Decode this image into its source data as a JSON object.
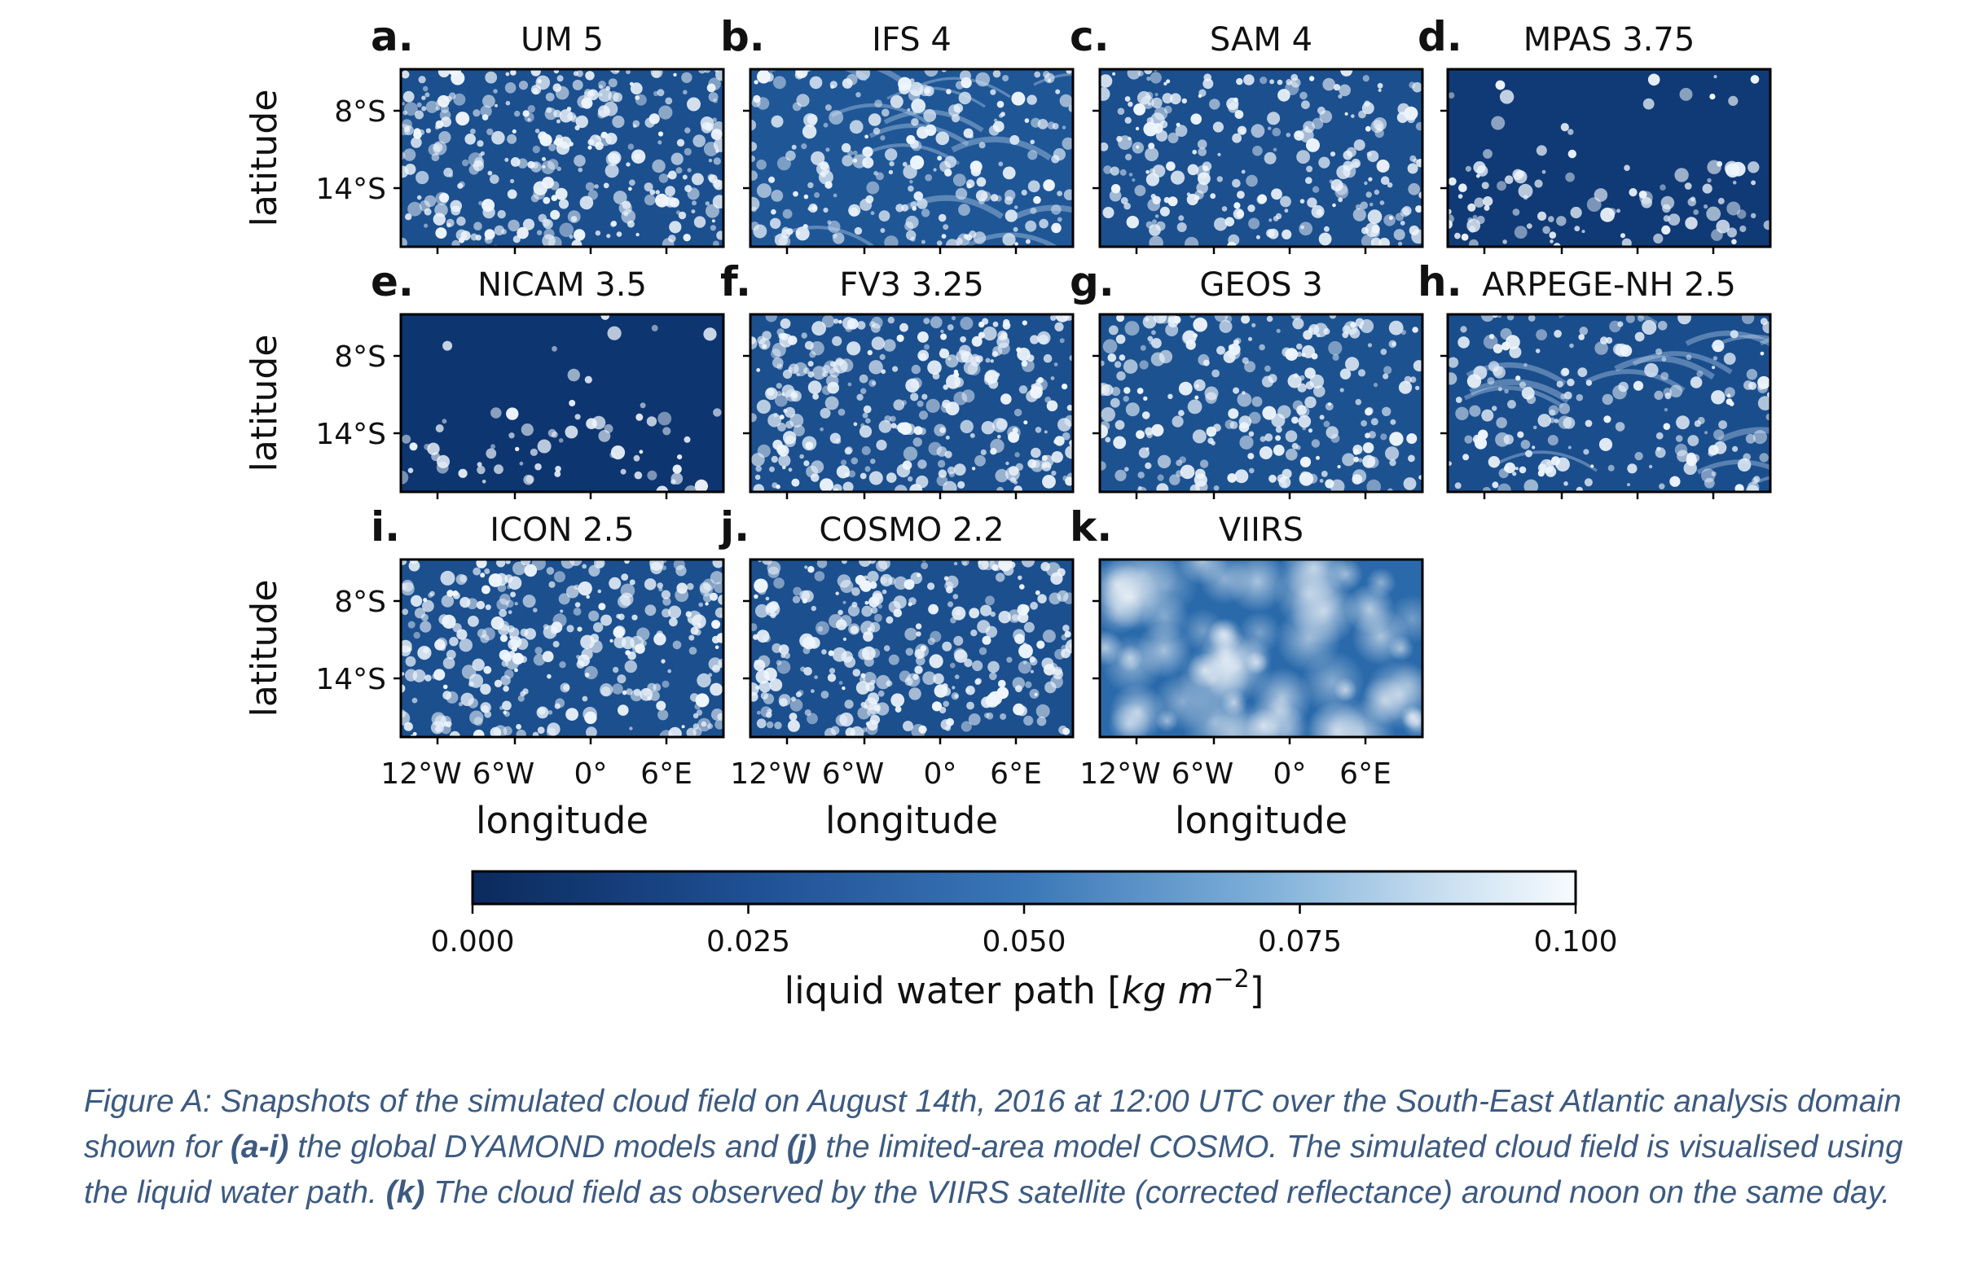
{
  "figure": {
    "panels": [
      {
        "letter": "a.",
        "title": "UM 5",
        "clouds": "dense"
      },
      {
        "letter": "b.",
        "title": "IFS 4",
        "clouds": "streaky"
      },
      {
        "letter": "c.",
        "title": "SAM 4",
        "clouds": "medium"
      },
      {
        "letter": "d.",
        "title": "MPAS 3.75",
        "clouds": "sparse"
      },
      {
        "letter": "e.",
        "title": "NICAM 3.5",
        "clouds": "very-sparse"
      },
      {
        "letter": "f.",
        "title": "FV3 3.25",
        "clouds": "cellular"
      },
      {
        "letter": "g.",
        "title": "GEOS 3",
        "clouds": "medium"
      },
      {
        "letter": "h.",
        "title": "ARPEGE-NH 2.5",
        "clouds": "swirl"
      },
      {
        "letter": "i.",
        "title": "ICON 2.5",
        "clouds": "cellular"
      },
      {
        "letter": "j.",
        "title": "COSMO 2.2",
        "clouds": "cellular"
      },
      {
        "letter": "k.",
        "title": "VIIRS",
        "clouds": "observed"
      }
    ],
    "y_axis_label": "latitude",
    "y_tick_labels": [
      "8°S",
      "14°S"
    ],
    "x_axis_label": "longitude",
    "x_tick_labels": [
      "12°W",
      "6°W",
      "0°",
      "6°E"
    ],
    "colorbar": {
      "ticks": [
        "0.000",
        "0.025",
        "0.050",
        "0.075",
        "0.100"
      ],
      "label_text": "liquid water path [",
      "label_units": "kg m",
      "label_exponent": "−2",
      "label_close": "]",
      "colors": [
        "#0b2a5c",
        "#1f4f94",
        "#3a77b8",
        "#7fb0d9",
        "#c9dff0",
        "#f7fbff"
      ]
    }
  },
  "chart_data": {
    "type": "heatmap",
    "variable": "liquid water path [kg m−2]",
    "colorbar_range": [
      0.0,
      0.1
    ],
    "colorbar_ticks": [
      0.0,
      0.025,
      0.05,
      0.075,
      0.1
    ],
    "panels": [
      "UM 5",
      "IFS 4",
      "SAM 4",
      "MPAS 3.75",
      "NICAM 3.5",
      "FV3 3.25",
      "GEOS 3",
      "ARPEGE-NH 2.5",
      "ICON 2.5",
      "COSMO 2.2",
      "VIIRS"
    ],
    "x": [
      "12°W",
      "6°W",
      "0°",
      "6°E"
    ],
    "y": [
      "8°S",
      "14°S"
    ],
    "xlabel": "longitude",
    "ylabel": "latitude"
  },
  "caption": {
    "p1": "Figure A: Snapshots of the simulated cloud field on August 14th, 2016 at 12:00 UTC over the South-East Atlantic analysis domain shown for ",
    "b1": "(a-i)",
    "p2": " the global DYAMOND models and ",
    "b2": "(j)",
    "p3": " the limited-area model COSMO. The simulated cloud field is visualised using the liquid water path. ",
    "b3": "(k)",
    "p4": " The cloud field as observed by the VIIRS satellite (corrected reflectance) around noon on the same day."
  }
}
